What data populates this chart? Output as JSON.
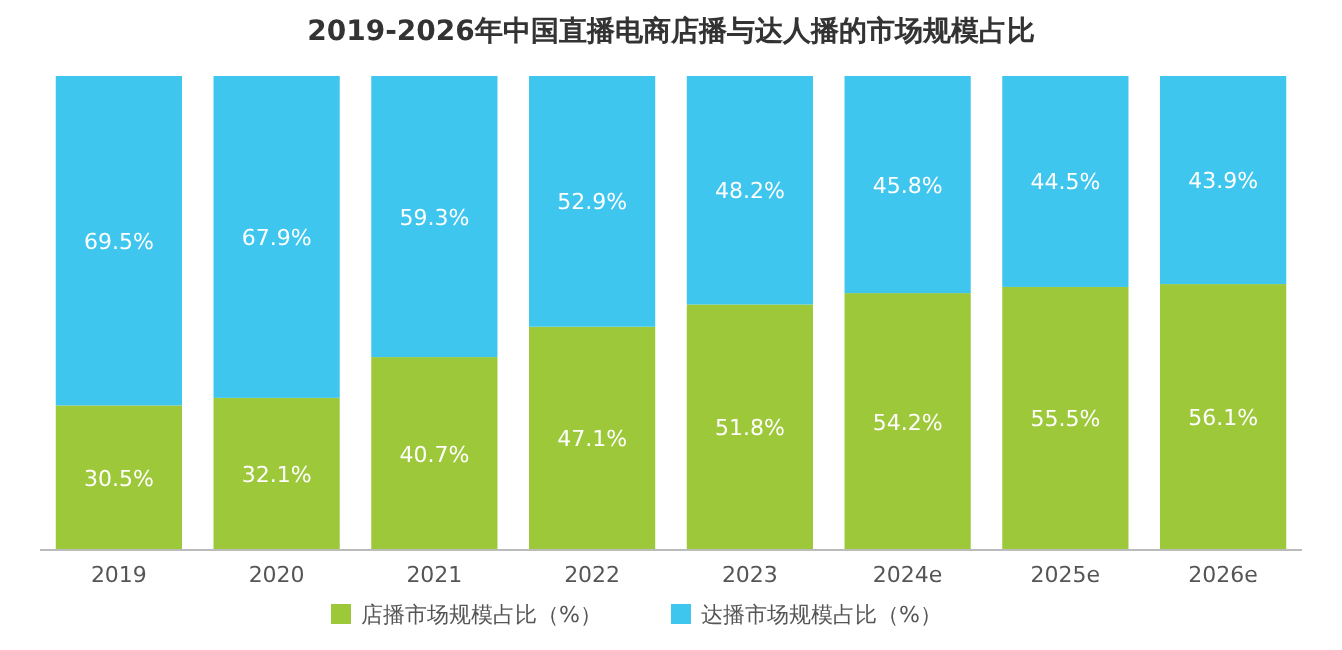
{
  "chart_data": {
    "type": "bar",
    "title": "2019-2026年中国直播电商店播与达人播的市场规模占比",
    "categories": [
      "2019",
      "2020",
      "2021",
      "2022",
      "2023",
      "2024e",
      "2025e",
      "2026e"
    ],
    "stacked": true,
    "ylim": [
      0,
      100
    ],
    "tick_labels": "x",
    "legend": "bottom",
    "grid": false,
    "series": [
      {
        "name": "店播市场规模占比（%）",
        "color": "#9dc83a",
        "values": [
          30.5,
          32.1,
          40.7,
          47.1,
          51.8,
          54.2,
          55.5,
          56.1
        ],
        "value_labels": [
          "30.5%",
          "32.1%",
          "40.7%",
          "47.1%",
          "51.8%",
          "54.2%",
          "55.5%",
          "56.1%"
        ]
      },
      {
        "name": "达播市场规模占比（%）",
        "color": "#3ec6ee",
        "values": [
          69.5,
          67.9,
          59.3,
          52.9,
          48.2,
          45.8,
          44.5,
          43.9
        ],
        "value_labels": [
          "69.5%",
          "67.9%",
          "59.3%",
          "52.9%",
          "48.2%",
          "45.8%",
          "44.5%",
          "43.9%"
        ]
      }
    ]
  }
}
